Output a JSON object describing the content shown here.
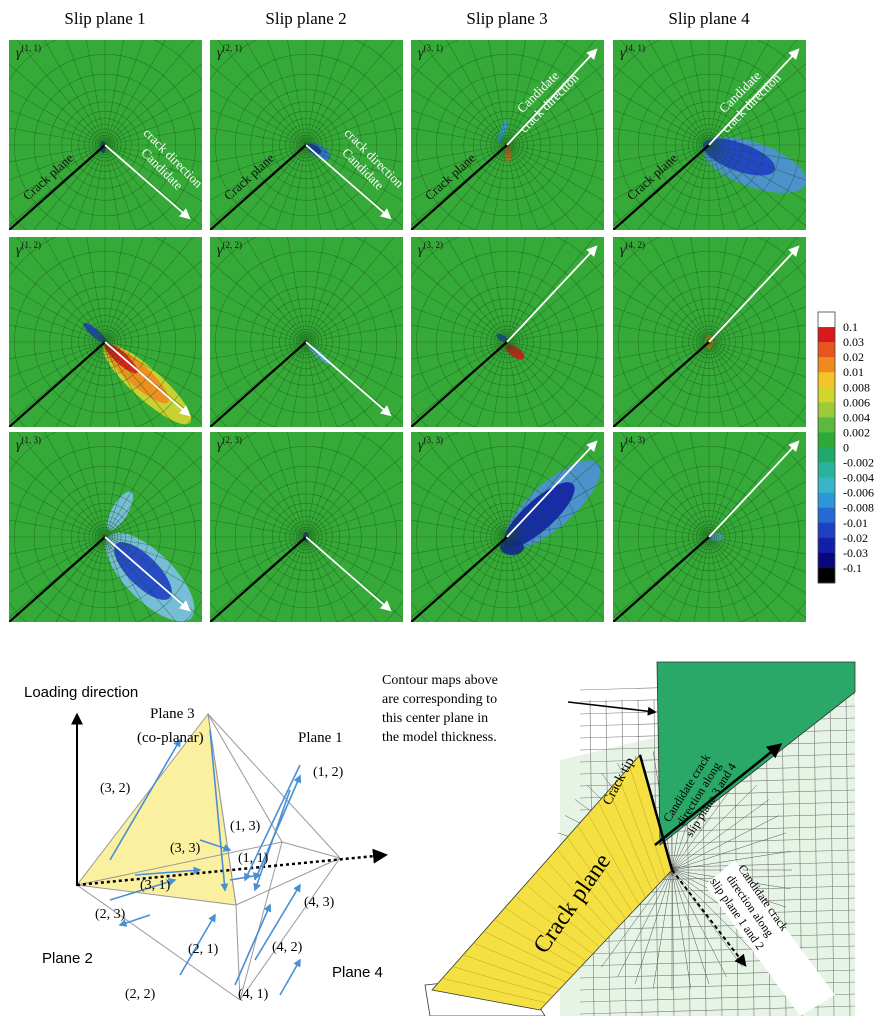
{
  "column_headers": [
    "Slip plane 1",
    "Slip plane 2",
    "Slip plane 3",
    "Slip plane 4"
  ],
  "panels": [
    {
      "label_base": "γ",
      "label_sup": "(1, 1)"
    },
    {
      "label_base": "γ",
      "label_sup": "(2, 1)"
    },
    {
      "label_base": "γ",
      "label_sup": "(3, 1)"
    },
    {
      "label_base": "γ",
      "label_sup": "(4, 1)"
    },
    {
      "label_base": "γ",
      "label_sup": "(1, 2)"
    },
    {
      "label_base": "γ",
      "label_sup": "(2, 2)"
    },
    {
      "label_base": "γ",
      "label_sup": "(3, 2)"
    },
    {
      "label_base": "γ",
      "label_sup": "(4, 2)"
    },
    {
      "label_base": "γ",
      "label_sup": "(1, 3)"
    },
    {
      "label_base": "γ",
      "label_sup": "(2, 3)"
    },
    {
      "label_base": "γ",
      "label_sup": "(3, 3)"
    },
    {
      "label_base": "γ",
      "label_sup": "(4, 3)"
    }
  ],
  "panel_annotations": {
    "crack_plane": "Crack plane",
    "candidate_lines": [
      "Candidate",
      "crack direction"
    ]
  },
  "colorbar": {
    "labels": [
      "0.1",
      "0.03",
      "0.02",
      "0.01",
      "0.008",
      "0.006",
      "0.004",
      "0.002",
      "0",
      "-0.002",
      "-0.004",
      "-0.006",
      "-0.008",
      "-0.01",
      "-0.02",
      "-0.03",
      "-0.1"
    ]
  },
  "schematic": {
    "loading_direction": "Loading direction",
    "plane3": "Plane 3",
    "coplanar": "(co-planar)",
    "plane1": "Plane 1",
    "plane2": "Plane 2",
    "plane4": "Plane 4",
    "pairs": [
      "(3, 2)",
      "(1, 2)",
      "(1, 3)",
      "(3, 3)",
      "(1, 1)",
      "(3, 1)",
      "(2, 3)",
      "(4, 3)",
      "(2, 1)",
      "(4, 2)",
      "(2, 2)",
      "(4, 1)"
    ]
  },
  "model": {
    "note_lines": [
      "Contour maps above",
      "are corresponding to",
      "this center plane in",
      "the model thickness."
    ],
    "crack_tip": "Crack tip",
    "crack_plane": "Crack plane",
    "direction_34_lines": [
      "Candidate crack",
      "direction along",
      "slip plane 3 and 4"
    ],
    "direction_12_lines": [
      "Candidate crack",
      "direction along",
      "slip plane 1 and 2"
    ]
  }
}
